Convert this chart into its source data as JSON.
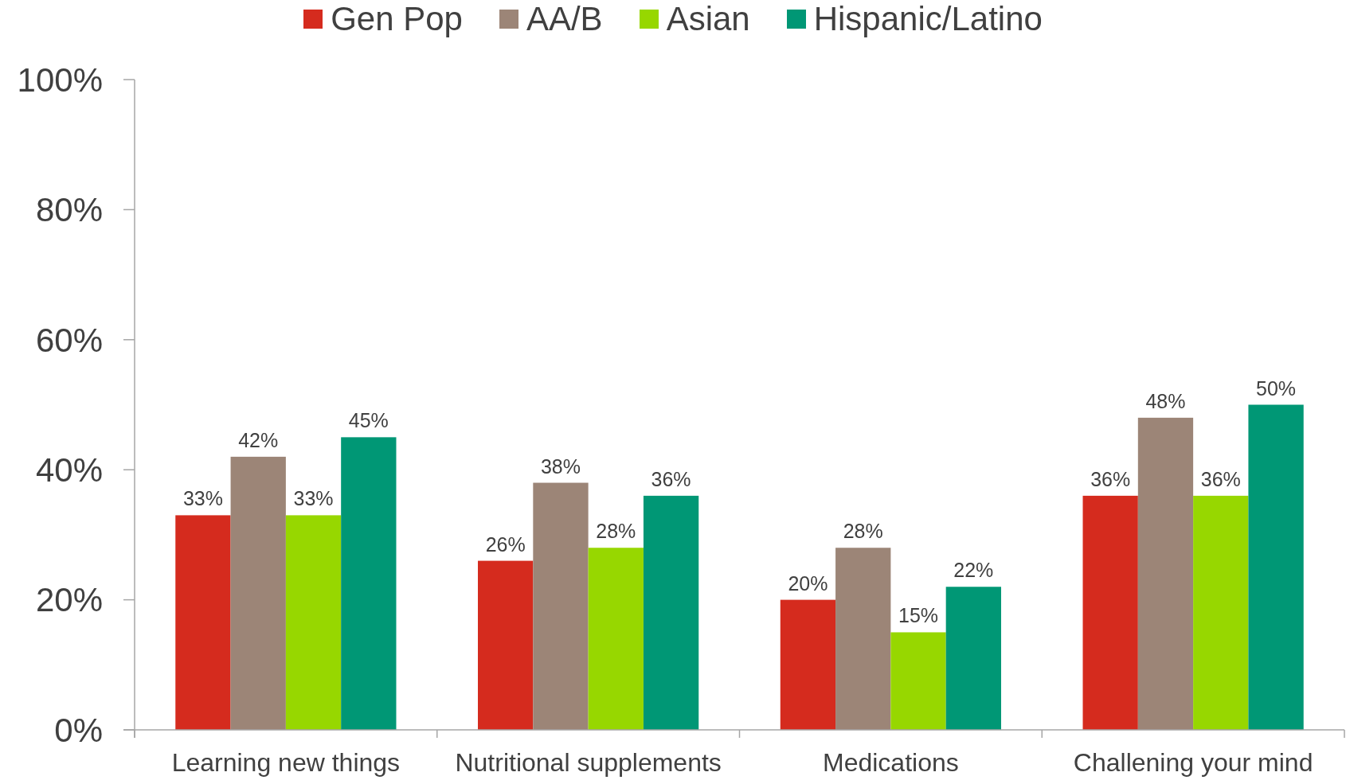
{
  "chart_data": {
    "type": "bar",
    "categories": [
      "Learning new things",
      "Nutritional supplements",
      "Medications",
      "Challening your mind"
    ],
    "series": [
      {
        "name": "Gen Pop",
        "color": "#d52b1e",
        "values": [
          33,
          26,
          20,
          36
        ],
        "value_labels": [
          "33%",
          "26%",
          "20%",
          "36%"
        ]
      },
      {
        "name": "AA/B",
        "color": "#9c8577",
        "values": [
          42,
          38,
          28,
          48
        ],
        "value_labels": [
          "42%",
          "38%",
          "28%",
          "48%"
        ]
      },
      {
        "name": "Asian",
        "color": "#97d700",
        "values": [
          33,
          28,
          15,
          36
        ],
        "value_labels": [
          "33%",
          "28%",
          "15%",
          "36%"
        ]
      },
      {
        "name": "Hispanic/Latino",
        "color": "#009775",
        "values": [
          45,
          36,
          22,
          50
        ],
        "value_labels": [
          "45%",
          "36%",
          "22%",
          "50%"
        ]
      }
    ],
    "ylim": [
      0,
      100
    ],
    "yticks": [
      {
        "value": 0,
        "label": "0%"
      },
      {
        "value": 20,
        "label": "20%"
      },
      {
        "value": 40,
        "label": "40%"
      },
      {
        "value": 60,
        "label": "60%"
      },
      {
        "value": 80,
        "label": "80%"
      },
      {
        "value": 100,
        "label": "100%"
      }
    ],
    "legend": "top"
  }
}
